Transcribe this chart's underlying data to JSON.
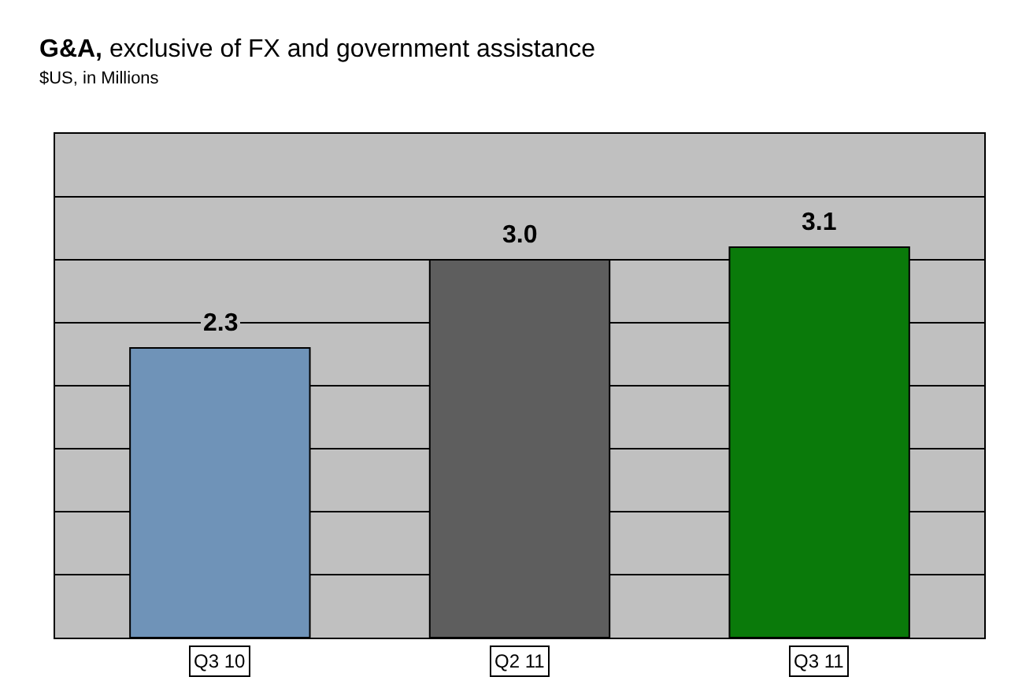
{
  "chart_data": {
    "type": "bar",
    "title": "G&A, exclusive of FX and government assistance",
    "subtitle": "$US, in Millions",
    "categories": [
      "Q3 10",
      "Q2 11",
      "Q3 11"
    ],
    "values": [
      2.3,
      3.0,
      3.1
    ],
    "colors": [
      "#6f93b8",
      "#5e5e5e",
      "#0a7a0a"
    ],
    "value_labels": [
      "2.3",
      "3.0",
      "3.1"
    ],
    "ylim": [
      0,
      4
    ],
    "yticks": [
      {
        "value": 0,
        "label": null
      },
      {
        "value": 0.5,
        "label": null
      },
      {
        "value": 1,
        "label": null
      },
      {
        "value": 1.5,
        "label": null
      },
      {
        "value": 2,
        "label": null
      },
      {
        "value": 2.5,
        "label": null
      },
      {
        "value": 3,
        "label": null
      },
      {
        "value": 3.5,
        "label": null
      },
      {
        "value": 4,
        "label": null
      }
    ],
    "grid": "y",
    "tick_labels": "x"
  }
}
